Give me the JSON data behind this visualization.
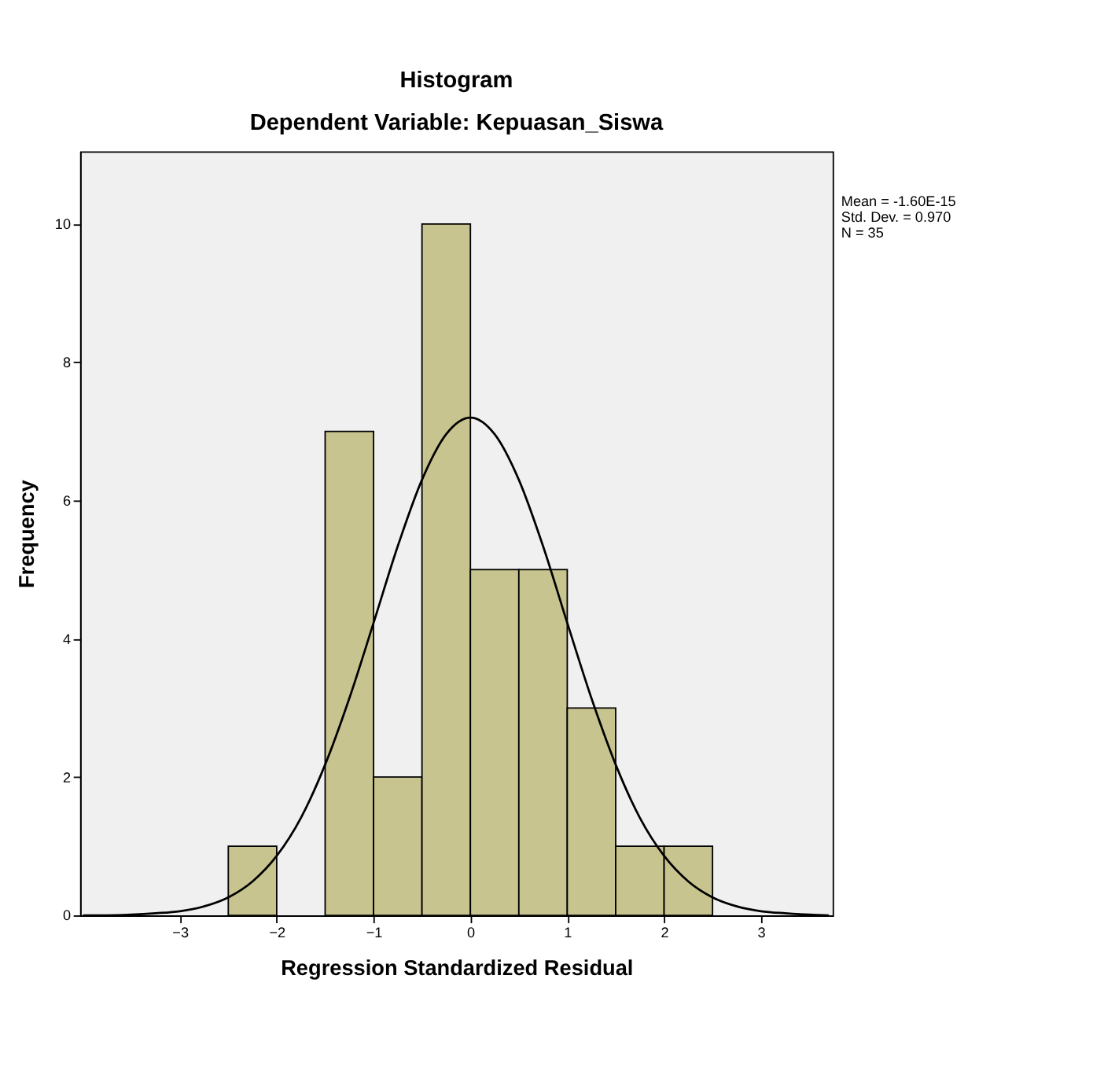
{
  "chart_data": {
    "type": "histogram",
    "title": "Histogram",
    "subtitle": "Dependent Variable: Kepuasan_Siswa",
    "xlabel": "Regression Standardized Residual",
    "ylabel": "Frequency",
    "bins": [
      -2.5,
      -2,
      -1.5,
      -1,
      -0.5,
      0,
      0.5,
      1,
      1.5,
      2,
      2.5
    ],
    "values": [
      1,
      0,
      7,
      2,
      10,
      5,
      5,
      3,
      1,
      1
    ],
    "color": "#c8c48f",
    "series": [
      {
        "type": "line",
        "color": "#000000",
        "x": [
          -4,
          -3.75,
          -3.5,
          -3.25,
          -3,
          -2.75,
          -2.5,
          -2.25,
          -2,
          -1.75,
          -1.5,
          -1.25,
          -1,
          -0.75,
          -0.5,
          -0.25,
          0,
          0.25,
          0.5,
          0.75,
          1,
          1.25,
          1.5,
          1.75,
          2,
          2.25,
          2.5,
          2.75,
          3,
          3.25,
          3.5,
          3.7
        ],
        "values": [
          0,
          0,
          0.01,
          0.03,
          0.06,
          0.13,
          0.26,
          0.49,
          0.86,
          1.41,
          2.18,
          3.14,
          4.23,
          5.34,
          6.3,
          6.96,
          7.2,
          6.96,
          6.3,
          5.34,
          4.23,
          3.14,
          2.18,
          1.41,
          0.86,
          0.49,
          0.26,
          0.13,
          0.06,
          0.03,
          0.01,
          0
        ]
      }
    ],
    "xlim": [
      -4.03,
      3.74
    ],
    "xticks": [
      -3,
      -2,
      -1,
      0,
      1,
      2,
      3
    ],
    "ylim": [
      0,
      11.05
    ],
    "yticks": [
      0,
      2,
      4,
      6,
      8,
      10
    ],
    "annotations": [
      "Mean = -1.60E-15",
      "Std. Dev. = 0.970",
      "N = 35"
    ]
  }
}
